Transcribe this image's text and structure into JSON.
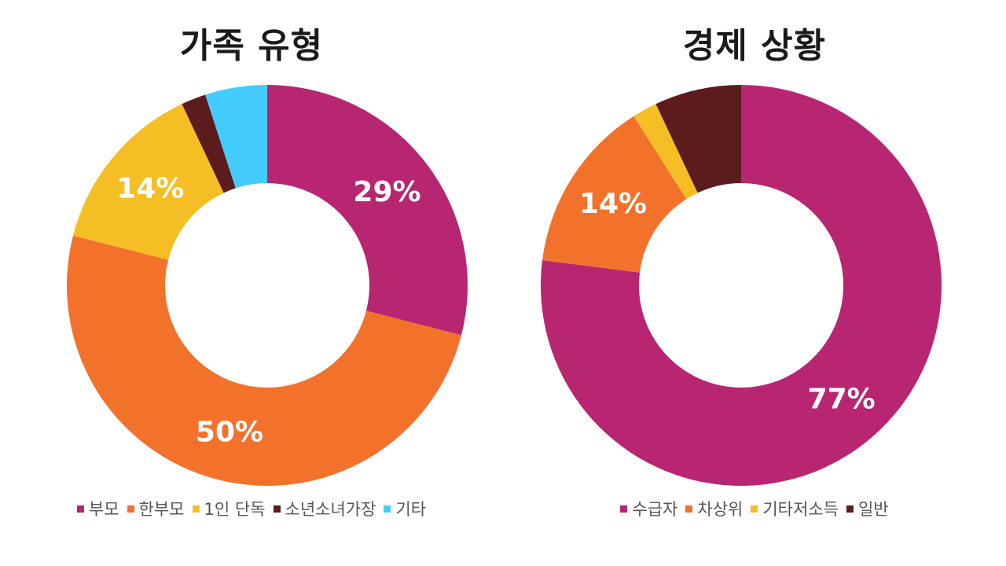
{
  "chart_data": [
    {
      "type": "pie",
      "donut": true,
      "title": "가족 유형",
      "categories": [
        "부모",
        "한부모",
        "1인 단독",
        "소년소녀가장",
        "기타"
      ],
      "values": [
        29,
        50,
        14,
        2,
        5
      ],
      "data_labels": [
        "29%",
        "50%",
        "14%",
        "",
        ""
      ],
      "colors": [
        "#B82671",
        "#F2722C",
        "#F6BE25",
        "#5C1C1E",
        "#45CCFF"
      ],
      "legend_position": "bottom"
    },
    {
      "type": "pie",
      "donut": true,
      "title": "경제 상황",
      "categories": [
        "수급자",
        "차상위",
        "기타저소득",
        "일반"
      ],
      "values": [
        77,
        14,
        2,
        7
      ],
      "data_labels": [
        "77%",
        "14%",
        "",
        ""
      ],
      "colors": [
        "#B82671",
        "#F2722C",
        "#F6BE25",
        "#5C1C1E"
      ],
      "legend_position": "bottom"
    }
  ]
}
